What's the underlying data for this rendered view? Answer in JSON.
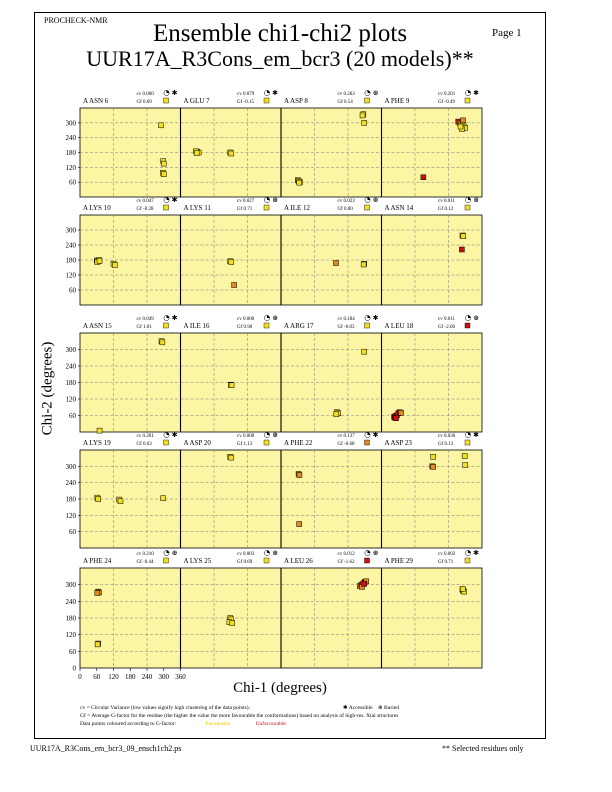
{
  "header": {
    "program": "PROCHECK-NMR",
    "page_label": "Page  1",
    "title_line1": "Ensemble chi1-chi2 plots",
    "title_line2": "UUR17A_R3Cons_em_bcr3 (20 models)**"
  },
  "axes": {
    "xlabel": "Chi-1 (degrees)",
    "ylabel": "Chi-2 (degrees)",
    "x_ticks": [
      "0",
      "60",
      "120",
      "180",
      "240",
      "300",
      "360"
    ],
    "y_ticks": [
      "60",
      "120",
      "180",
      "240",
      "300"
    ],
    "y_zero": "0"
  },
  "colors": {
    "panel_bg": "#fbf5a4",
    "favourable": "#f2e020",
    "orange": "#e08a20",
    "unfavourable": "#cc1010",
    "grid": "#7a7a7a",
    "legend_favourable": "#e8c800",
    "legend_unfavourable": "#cc1010"
  },
  "footer": {
    "line1_a": "cv = Circular Variance (low values signify high clustering of the data points).",
    "line1_accessible": "Accessible",
    "line1_buried": "Buried",
    "line2": "Gf = Average G-factor for the residue (the higher the value the more favourable the conformations) based on analysis of high-res. Xtal structures",
    "line3": "Data points coloured according to G-factor:",
    "favourable": "Favourable",
    "unfavourable": "Unfavourable",
    "filename": "UUR17A_R3Cons_em_bcr3_09_ensch1ch2.ps",
    "selected_note": "** Selected residues only"
  },
  "chart_data": {
    "type": "scatter",
    "xlabel": "Chi-1 (degrees)",
    "ylabel": "Chi-2 (degrees)",
    "xlim": [
      0,
      360
    ],
    "ylim": [
      0,
      360
    ],
    "grid": true,
    "panels": [
      {
        "name": "A ASN 6",
        "cv": "cv 0.060",
        "gf": "Gf 0.69",
        "gfcolor": "#f2e020",
        "acc": "accessible",
        "points": [
          [
            290,
            290,
            "y"
          ],
          [
            298,
            145,
            "y"
          ],
          [
            300,
            135,
            "y"
          ],
          [
            297,
            98,
            "y"
          ],
          [
            300,
            92,
            "y"
          ]
        ]
      },
      {
        "name": "A GLU 7",
        "cv": "cv 0.079",
        "gf": "Gf -0.15",
        "gfcolor": "#f2e020",
        "acc": "accessible",
        "points": [
          [
            60,
            183,
            "y"
          ],
          [
            65,
            180,
            "y"
          ],
          [
            55,
            185,
            "y"
          ],
          [
            58,
            178,
            "y"
          ],
          [
            178,
            180,
            "y"
          ],
          [
            182,
            176,
            "y"
          ]
        ]
      },
      {
        "name": "A ASP 8",
        "cv": "cv 0.263",
        "gf": "Gf 0.54",
        "gfcolor": "#f2e020",
        "acc": "buried",
        "points": [
          [
            295,
            335,
            "y"
          ],
          [
            292,
            330,
            "y"
          ],
          [
            298,
            300,
            "y"
          ],
          [
            60,
            68,
            "y"
          ],
          [
            63,
            65,
            "y"
          ],
          [
            68,
            60,
            "y"
          ],
          [
            65,
            58,
            "y"
          ]
        ]
      },
      {
        "name": "A PHE 9",
        "cv": "cv 0.201",
        "gf": "Gf -0.49",
        "gfcolor": "#f2e020",
        "acc": "accessible",
        "points": [
          [
            275,
            305,
            "r"
          ],
          [
            280,
            300,
            "o"
          ],
          [
            285,
            295,
            "o"
          ],
          [
            290,
            290,
            "y"
          ],
          [
            295,
            285,
            "y"
          ],
          [
            300,
            280,
            "y"
          ],
          [
            288,
            275,
            "y"
          ],
          [
            292,
            310,
            "o"
          ],
          [
            283,
            285,
            "y"
          ],
          [
            150,
            80,
            "r"
          ]
        ]
      },
      {
        "name": "A LYS 10",
        "cv": "cv 0.047",
        "gf": "Gf -0.28",
        "gfcolor": "#f2e020",
        "acc": "accessible",
        "points": [
          [
            60,
            178,
            "y"
          ],
          [
            65,
            175,
            "y"
          ],
          [
            68,
            180,
            "y"
          ],
          [
            62,
            172,
            "y"
          ],
          [
            70,
            176,
            "y"
          ],
          [
            120,
            165,
            "y"
          ],
          [
            125,
            160,
            "y"
          ]
        ]
      },
      {
        "name": "A LYS 11",
        "cv": "cv 0.027",
        "gf": "Gf 0.71",
        "gfcolor": "#f2e020",
        "acc": "buried",
        "points": [
          [
            178,
            175,
            "y"
          ],
          [
            182,
            172,
            "y"
          ],
          [
            192,
            80,
            "o"
          ]
        ]
      },
      {
        "name": "A ILE 12",
        "cv": "cv 0.023",
        "gf": "Gf 0.80",
        "gfcolor": "#f2e020",
        "acc": "buried",
        "points": [
          [
            197,
            168,
            "o"
          ],
          [
            298,
            165,
            "y"
          ],
          [
            296,
            162,
            "y"
          ]
        ]
      },
      {
        "name": "A ASN 14",
        "cv": "cv 0.011",
        "gf": "Gf 0.12",
        "gfcolor": "#f2e020",
        "acc": "buried",
        "points": [
          [
            290,
            278,
            "y"
          ],
          [
            293,
            275,
            "y"
          ],
          [
            288,
            222,
            "r"
          ]
        ]
      },
      {
        "name": "A ASN 15",
        "cv": "cv 0.049",
        "gf": "Gf 1.01",
        "gfcolor": "#f2e020",
        "acc": "accessible",
        "points": [
          [
            292,
            330,
            "y"
          ],
          [
            295,
            326,
            "y"
          ],
          [
            70,
            5,
            "y"
          ]
        ]
      },
      {
        "name": "A ILE 16",
        "cv": "cv 0.000",
        "gf": "Gf 0.90",
        "gfcolor": "#f2e020",
        "acc": "buried",
        "points": [
          [
            180,
            172,
            "y"
          ],
          [
            183,
            170,
            "y"
          ]
        ]
      },
      {
        "name": "A ARG 17",
        "cv": "cv 0.184",
        "gf": "Gf -0.03",
        "gfcolor": "#f2e020",
        "acc": "half",
        "points": [
          [
            298,
            292,
            "y"
          ],
          [
            200,
            72,
            "y"
          ],
          [
            205,
            68,
            "y"
          ],
          [
            198,
            65,
            "y"
          ]
        ]
      },
      {
        "name": "A LEU 18",
        "cv": "cv 0.011",
        "gf": "Gf -2.66",
        "gfcolor": "#cc1010",
        "acc": "buried",
        "points": [
          [
            45,
            55,
            "r"
          ],
          [
            48,
            52,
            "r"
          ],
          [
            50,
            58,
            "r"
          ],
          [
            55,
            60,
            "r"
          ],
          [
            60,
            68,
            "r"
          ],
          [
            65,
            72,
            "r"
          ],
          [
            70,
            70,
            "o"
          ],
          [
            52,
            50,
            "r"
          ]
        ]
      },
      {
        "name": "A LYS 19",
        "cv": "cv 0.201",
        "gf": "Gf 0.63",
        "gfcolor": "#f2e020",
        "acc": "accessible",
        "points": [
          [
            62,
            185,
            "y"
          ],
          [
            65,
            180,
            "y"
          ],
          [
            140,
            178,
            "y"
          ],
          [
            145,
            172,
            "y"
          ],
          [
            298,
            183,
            "y"
          ]
        ]
      },
      {
        "name": "A ASP 20",
        "cv": "cv 0.000",
        "gf": "Gf 1.13",
        "gfcolor": "#f2e020",
        "acc": "buried",
        "points": [
          [
            178,
            335,
            "y"
          ],
          [
            182,
            332,
            "y"
          ]
        ]
      },
      {
        "name": "A PHE 22",
        "cv": "cv 0.137",
        "gf": "Gf -0.68",
        "gfcolor": "#e08a20",
        "acc": "half",
        "points": [
          [
            63,
            272,
            "o"
          ],
          [
            66,
            268,
            "o"
          ],
          [
            65,
            88,
            "o"
          ]
        ]
      },
      {
        "name": "A ASP 23",
        "cv": "cv 0.036",
        "gf": "Gf 0.13",
        "gfcolor": "#f2e020",
        "acc": "accessible",
        "points": [
          [
            185,
            335,
            "y"
          ],
          [
            182,
            300,
            "o"
          ],
          [
            185,
            298,
            "o"
          ],
          [
            298,
            338,
            "y"
          ],
          [
            300,
            305,
            "y"
          ]
        ]
      },
      {
        "name": "A PHE 24",
        "cv": "cv 0.210",
        "gf": "Gf -0.44",
        "gfcolor": "#f2e020",
        "acc": "buried",
        "points": [
          [
            65,
            275,
            "o"
          ],
          [
            68,
            272,
            "o"
          ],
          [
            62,
            270,
            "o"
          ],
          [
            65,
            88,
            "o"
          ],
          [
            63,
            85,
            "y"
          ]
        ]
      },
      {
        "name": "A LYS 25",
        "cv": "cv 0.003",
        "gf": "Gf 0.69",
        "gfcolor": "#f2e020",
        "acc": "buried",
        "points": [
          [
            178,
            180,
            "y"
          ],
          [
            182,
            175,
            "y"
          ],
          [
            175,
            165,
            "y"
          ],
          [
            185,
            162,
            "y"
          ]
        ]
      },
      {
        "name": "A LEU 26",
        "cv": "cv 0.012",
        "gf": "Gf -1.62",
        "gfcolor": "#cc1010",
        "acc": "buried",
        "points": [
          [
            282,
            295,
            "o"
          ],
          [
            288,
            300,
            "r"
          ],
          [
            295,
            305,
            "o"
          ],
          [
            300,
            310,
            "r"
          ],
          [
            305,
            312,
            "o"
          ],
          [
            290,
            292,
            "o"
          ],
          [
            298,
            303,
            "r"
          ]
        ]
      },
      {
        "name": "A PHE 29",
        "cv": "cv 0.002",
        "gf": "Gf 0.71",
        "gfcolor": "#f2e020",
        "acc": "accessible",
        "points": [
          [
            290,
            282,
            "y"
          ],
          [
            293,
            278,
            "y"
          ],
          [
            296,
            275,
            "y"
          ],
          [
            291,
            285,
            "y"
          ]
        ]
      }
    ]
  }
}
